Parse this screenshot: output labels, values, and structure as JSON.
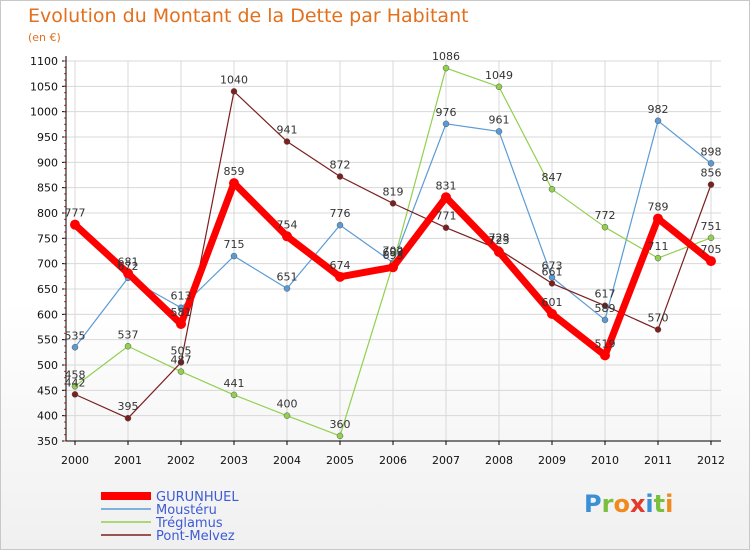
{
  "title": "Evolution du Montant de la Dette par Habitant",
  "subtitle": "(en €)",
  "logo": {
    "text": "Proxiti",
    "letters": [
      "P",
      "r",
      "o",
      "x",
      "i",
      "t",
      "i"
    ],
    "colors": [
      "#3a8fd6",
      "#7bbf3f",
      "#f08a1d",
      "#e53a2a",
      "#3a8fd6",
      "#7bbf3f",
      "#f08a1d"
    ]
  },
  "chart_data": {
    "type": "line",
    "title": "Evolution du Montant de la Dette par Habitant",
    "subtitle": "(en €)",
    "xlabel": "",
    "ylabel": "",
    "x": [
      "2000",
      "2001",
      "2002",
      "2003",
      "2004",
      "2005",
      "2006",
      "2007",
      "2008",
      "2009",
      "2010",
      "2011",
      "2012"
    ],
    "ylim": [
      350,
      1100
    ],
    "yticks": [
      350,
      400,
      450,
      500,
      550,
      600,
      650,
      700,
      750,
      800,
      850,
      900,
      950,
      1000,
      1050,
      1100
    ],
    "grid": true,
    "legend_position": "bottom-left",
    "series": [
      {
        "name": "GURUNHUEL",
        "color": "#ff0000",
        "width": 7,
        "values": [
          777,
          681,
          581,
          859,
          754,
          674,
          693,
          831,
          723,
          601,
          519,
          789,
          705
        ]
      },
      {
        "name": "Moustéru",
        "color": "#5b9bd5",
        "width": 1.2,
        "values": [
          535,
          672,
          613,
          715,
          651,
          776,
          702,
          976,
          961,
          673,
          589,
          982,
          898
        ]
      },
      {
        "name": "Tréglamus",
        "color": "#92d050",
        "width": 1.2,
        "values": [
          458,
          537,
          487,
          441,
          400,
          360,
          699,
          1086,
          1049,
          847,
          772,
          711,
          751
        ]
      },
      {
        "name": "Pont-Melvez",
        "color": "#7b1f1f",
        "width": 1.2,
        "values": [
          442,
          395,
          505,
          1040,
          941,
          872,
          819,
          771,
          728,
          661,
          617,
          570,
          856
        ]
      }
    ]
  }
}
